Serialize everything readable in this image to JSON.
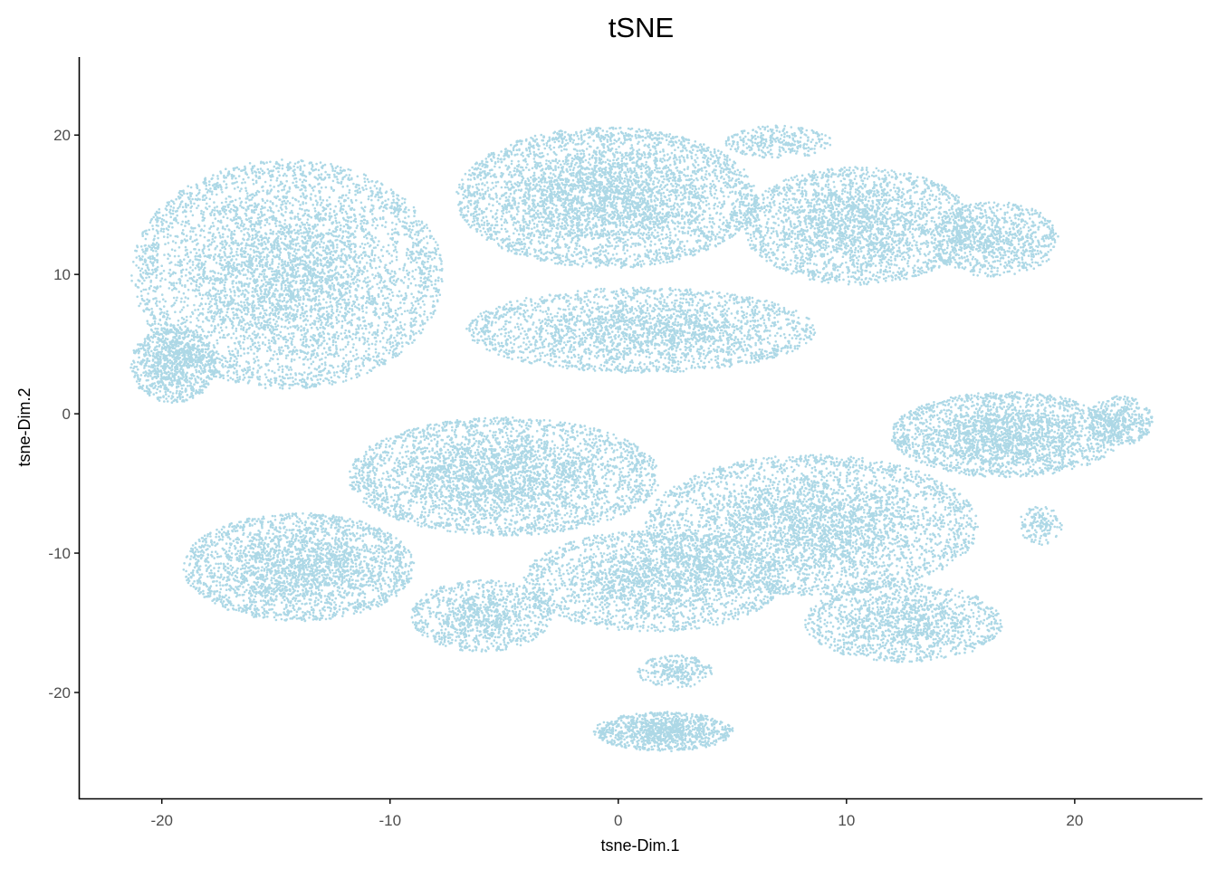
{
  "chart_data": {
    "type": "scatter",
    "title": "tSNE",
    "xlabel": "tsne-Dim.1",
    "ylabel": "tsne-Dim.2",
    "xlim": [
      -23.6,
      25.6
    ],
    "ylim": [
      -27.6,
      25.6
    ],
    "xticks": [
      -20,
      -10,
      0,
      10,
      20
    ],
    "yticks": [
      -20,
      -10,
      0,
      10,
      20
    ],
    "xtick_labels": [
      "-20",
      "-10",
      "0",
      "10",
      "20"
    ],
    "ytick_labels": [
      "-20",
      "-10",
      "0",
      "10",
      "20"
    ],
    "grid": false,
    "legend": "none",
    "point_color": "#add8e6",
    "axis_color": "#000000",
    "tick_label_color": "#4d4d4d",
    "series": [
      {
        "values": [
          {
            "cx": -14.5,
            "cy": 10.0,
            "sx": 5.8,
            "sy": 7.0,
            "n": 5200
          },
          {
            "cx": -19.5,
            "cy": 3.5,
            "sx": 1.6,
            "sy": 2.3,
            "n": 900
          },
          {
            "cx": -0.5,
            "cy": 15.5,
            "sx": 5.6,
            "sy": 4.3,
            "n": 4200
          },
          {
            "cx": 10.5,
            "cy": 13.5,
            "sx": 4.3,
            "sy": 3.6,
            "n": 2600
          },
          {
            "cx": 16.5,
            "cy": 12.5,
            "sx": 2.4,
            "sy": 2.3,
            "n": 900
          },
          {
            "cx": 1.0,
            "cy": 6.0,
            "sx": 6.5,
            "sy": 2.6,
            "n": 2600
          },
          {
            "cx": 17.0,
            "cy": -1.5,
            "sx": 4.3,
            "sy": 2.6,
            "n": 2400
          },
          {
            "cx": 22.0,
            "cy": -0.5,
            "sx": 1.2,
            "sy": 1.5,
            "n": 400
          },
          {
            "cx": -5.0,
            "cy": -4.5,
            "sx": 5.8,
            "sy": 3.6,
            "n": 3600
          },
          {
            "cx": 8.5,
            "cy": -8.0,
            "sx": 6.2,
            "sy": 4.3,
            "n": 4000
          },
          {
            "cx": 1.5,
            "cy": -12.0,
            "sx": 4.8,
            "sy": 3.1,
            "n": 2200
          },
          {
            "cx": 12.5,
            "cy": -15.0,
            "sx": 3.7,
            "sy": 2.4,
            "n": 1400
          },
          {
            "cx": -14.0,
            "cy": -11.0,
            "sx": 4.3,
            "sy": 3.3,
            "n": 2700
          },
          {
            "cx": -6.0,
            "cy": -14.5,
            "sx": 2.6,
            "sy": 2.2,
            "n": 1000
          },
          {
            "cx": 2.0,
            "cy": -22.8,
            "sx": 2.6,
            "sy": 1.2,
            "n": 1000
          },
          {
            "cx": 2.5,
            "cy": -18.5,
            "sx": 1.4,
            "sy": 1.0,
            "n": 250
          },
          {
            "cx": 18.5,
            "cy": -8.0,
            "sx": 0.8,
            "sy": 1.2,
            "n": 150
          },
          {
            "cx": 7.0,
            "cy": 19.5,
            "sx": 2.0,
            "sy": 1.0,
            "n": 300
          }
        ]
      }
    ]
  }
}
